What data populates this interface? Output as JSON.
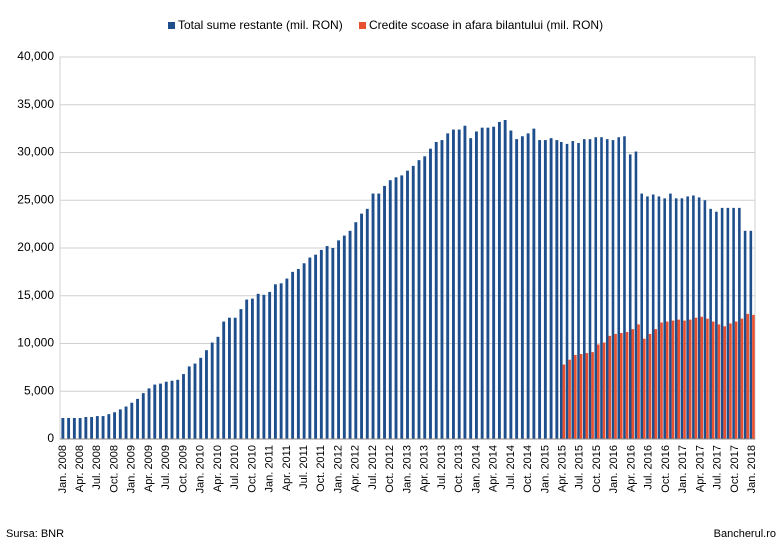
{
  "chart_data": {
    "type": "bar",
    "categories": [
      "Jan. 2008",
      null,
      null,
      "Apr. 2008",
      null,
      null,
      "Jul. 2008",
      null,
      null,
      "Oct. 2008",
      null,
      null,
      "Jan. 2009",
      null,
      null,
      "Apr. 2009",
      null,
      null,
      "Jul. 2009",
      null,
      null,
      "Oct. 2009",
      null,
      null,
      "Jan. 2010",
      null,
      null,
      "Apr. 2010",
      null,
      null,
      "Jul. 2010",
      null,
      null,
      "Oct. 2010",
      null,
      null,
      "Jan. 2011",
      null,
      null,
      "Apr. 2011",
      null,
      null,
      "Jul. 2011",
      null,
      null,
      "Oct. 2011",
      null,
      null,
      "Jan. 2012",
      null,
      null,
      "Apr. 2012",
      null,
      null,
      "Jul. 2012",
      null,
      null,
      "Oct. 2012",
      null,
      null,
      "Jan. 2013",
      null,
      null,
      "Apr. 2013",
      null,
      null,
      "Jul. 2013",
      null,
      null,
      "Oct. 2013",
      null,
      null,
      "Jan. 2014",
      null,
      null,
      "Apr. 2014",
      null,
      null,
      "Jul. 2014",
      null,
      null,
      "Oct. 2014",
      null,
      null,
      "Jan. 2015",
      null,
      null,
      "Apr. 2015",
      null,
      null,
      "Jul. 2015",
      null,
      null,
      "Oct. 2015",
      null,
      null,
      "Jan. 2016",
      null,
      null,
      "Apr. 2016",
      null,
      null,
      "Jul. 2016",
      null,
      null,
      "Oct. 2016",
      null,
      null,
      "Jan. 2017",
      null,
      null,
      "Apr. 2017",
      null,
      null,
      "Jul. 2017",
      null,
      null,
      "Oct. 2017",
      null,
      null,
      "Jan. 2018"
    ],
    "series": [
      {
        "name": "Total sume restante (mil. RON)",
        "color": "#1f4e8c",
        "values": [
          2200,
          2200,
          2200,
          2200,
          2300,
          2300,
          2400,
          2400,
          2600,
          2800,
          3100,
          3400,
          3800,
          4200,
          4800,
          5300,
          5700,
          5800,
          6000,
          6100,
          6200,
          6800,
          7600,
          7900,
          8500,
          9300,
          10100,
          10700,
          12300,
          12700,
          12700,
          13600,
          14600,
          14700,
          15200,
          15100,
          15400,
          16200,
          16300,
          16800,
          17500,
          17800,
          18400,
          19000,
          19300,
          19800,
          20200,
          20000,
          20800,
          21300,
          21800,
          22700,
          23600,
          24100,
          25700,
          25700,
          26500,
          27100,
          27400,
          27600,
          28100,
          28600,
          29200,
          29600,
          30400,
          31100,
          31300,
          32000,
          32400,
          32400,
          32800,
          31500,
          32200,
          32600,
          32600,
          32700,
          33200,
          33400,
          32300,
          31400,
          31700,
          32000,
          32500,
          31300,
          31300,
          31500,
          31300,
          31100,
          30900,
          31200,
          31000,
          31400,
          31400,
          31600,
          31600,
          31400,
          31300,
          31600,
          31700,
          29800,
          30100,
          25700,
          25400,
          25600,
          25400,
          25200,
          25700,
          25200,
          25200,
          25400,
          25500,
          25300,
          25000,
          24100,
          23800,
          24200,
          24200,
          24200,
          24200,
          21800,
          21800
        ]
      },
      {
        "name": "Credite scoase in afara bilantului (mil. RON)",
        "color": "#e8502f",
        "values": [
          null,
          null,
          null,
          null,
          null,
          null,
          null,
          null,
          null,
          null,
          null,
          null,
          null,
          null,
          null,
          null,
          null,
          null,
          null,
          null,
          null,
          null,
          null,
          null,
          null,
          null,
          null,
          null,
          null,
          null,
          null,
          null,
          null,
          null,
          null,
          null,
          null,
          null,
          null,
          null,
          null,
          null,
          null,
          null,
          null,
          null,
          null,
          null,
          null,
          null,
          null,
          null,
          null,
          null,
          null,
          null,
          null,
          null,
          null,
          null,
          null,
          null,
          null,
          null,
          null,
          null,
          null,
          null,
          null,
          null,
          null,
          null,
          null,
          null,
          null,
          null,
          null,
          null,
          null,
          null,
          null,
          null,
          null,
          null,
          null,
          null,
          null,
          7800,
          8300,
          8800,
          8900,
          9000,
          9100,
          9900,
          10100,
          10800,
          11000,
          11100,
          11200,
          11500,
          12000,
          10500,
          11000,
          11500,
          12200,
          12300,
          12400,
          12500,
          12400,
          12500,
          12700,
          12800,
          12600,
          12300,
          12000,
          11800,
          12100,
          12300,
          12600,
          13100,
          13000
        ]
      }
    ],
    "ylim": [
      0,
      40000
    ],
    "yticks": [
      0,
      {
        "value": 5000,
        "label": "5,000"
      },
      {
        "value": 10000,
        "label": "10,000"
      },
      {
        "value": 15000,
        "label": "15,000"
      },
      {
        "value": 20000,
        "label": "20,000"
      },
      {
        "value": 25000,
        "label": "25,000"
      },
      {
        "value": 30000,
        "label": "30,000"
      },
      {
        "value": 35000,
        "label": "35,000"
      },
      {
        "value": 40000,
        "label": "40,000"
      }
    ],
    "grid": true,
    "legend": "top",
    "source": "Sursa: BNR",
    "credit": "Bancherul.ro"
  }
}
